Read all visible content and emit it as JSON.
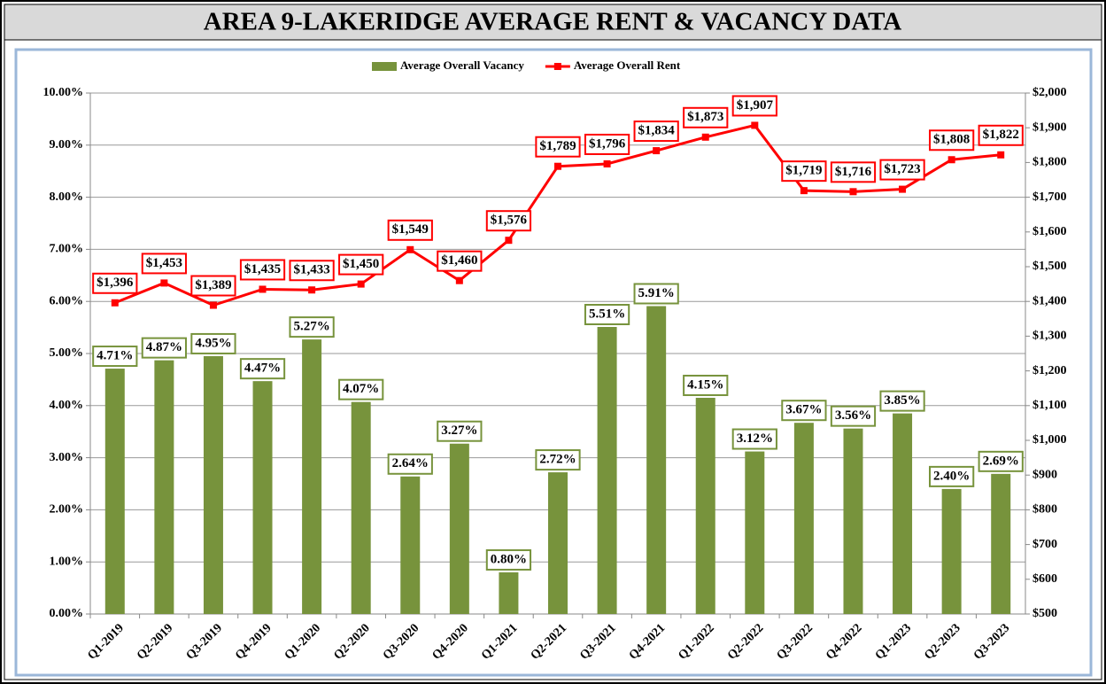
{
  "chart_data": {
    "type": "combo",
    "title": "AREA 9-LAKERIDGE AVERAGE RENT & VACANCY DATA",
    "categories": [
      "Q1-2019",
      "Q2-2019",
      "Q3-2019",
      "Q4-2019",
      "Q1-2020",
      "Q2-2020",
      "Q3-2020",
      "Q4-2020",
      "Q1-2021",
      "Q2-2021",
      "Q3-2021",
      "Q4-2021",
      "Q1-2022",
      "Q2-2022",
      "Q3-2022",
      "Q4-2022",
      "Q1-2023",
      "Q2-2023",
      "Q3-2023"
    ],
    "series": [
      {
        "name": "Average Overall Vacancy",
        "type": "bar",
        "color": "#77933c",
        "values": [
          4.71,
          4.87,
          4.95,
          4.47,
          5.27,
          4.07,
          2.64,
          3.27,
          0.8,
          2.72,
          5.51,
          5.91,
          4.15,
          3.12,
          3.67,
          3.56,
          3.85,
          2.4,
          2.69
        ],
        "value_labels": [
          "4.71%",
          "4.87%",
          "4.95%",
          "4.47%",
          "5.27%",
          "4.07%",
          "2.64%",
          "3.27%",
          "0.80%",
          "2.72%",
          "5.51%",
          "5.91%",
          "4.15%",
          "3.12%",
          "3.67%",
          "3.56%",
          "3.85%",
          "2.40%",
          "2.69%"
        ]
      },
      {
        "name": "Average Overall Rent",
        "type": "line",
        "color": "#ff0000",
        "axis": "y2",
        "values": [
          1396,
          1453,
          1389,
          1435,
          1433,
          1450,
          1549,
          1460,
          1576,
          1789,
          1796,
          1834,
          1873,
          1907,
          1719,
          1716,
          1723,
          1808,
          1822
        ],
        "value_labels": [
          "$1,396",
          "$1,453",
          "$1,389",
          "$1,435",
          "$1,433",
          "$1,450",
          "$1,549",
          "$1,460",
          "$1,576",
          "$1,789",
          "$1,796",
          "$1,834",
          "$1,873",
          "$1,907",
          "$1,719",
          "$1,716",
          "$1,723",
          "$1,808",
          "$1,822"
        ]
      }
    ],
    "ylim": [
      0,
      10
    ],
    "yticks": [
      {
        "value": 0,
        "label": "0.00%"
      },
      {
        "value": 1,
        "label": "1.00%"
      },
      {
        "value": 2,
        "label": "2.00%"
      },
      {
        "value": 3,
        "label": "3.00%"
      },
      {
        "value": 4,
        "label": "4.00%"
      },
      {
        "value": 5,
        "label": "5.00%"
      },
      {
        "value": 6,
        "label": "6.00%"
      },
      {
        "value": 7,
        "label": "7.00%"
      },
      {
        "value": 8,
        "label": "8.00%"
      },
      {
        "value": 9,
        "label": "9.00%"
      },
      {
        "value": 10,
        "label": "10.00%"
      }
    ],
    "y2lim": [
      500,
      2000
    ],
    "y2ticks": [
      {
        "value": 500,
        "label": "$500"
      },
      {
        "value": 600,
        "label": "$600"
      },
      {
        "value": 700,
        "label": "$700"
      },
      {
        "value": 800,
        "label": "$800"
      },
      {
        "value": 900,
        "label": "$900"
      },
      {
        "value": 1000,
        "label": "$1,000"
      },
      {
        "value": 1100,
        "label": "$1,100"
      },
      {
        "value": 1200,
        "label": "$1,200"
      },
      {
        "value": 1300,
        "label": "$1,300"
      },
      {
        "value": 1400,
        "label": "$1,400"
      },
      {
        "value": 1500,
        "label": "$1,500"
      },
      {
        "value": 1600,
        "label": "$1,600"
      },
      {
        "value": 1700,
        "label": "$1,700"
      },
      {
        "value": 1800,
        "label": "$1,800"
      },
      {
        "value": 1900,
        "label": "$1,900"
      },
      {
        "value": 2000,
        "label": "$2,000"
      }
    ],
    "grid": true,
    "legend": "top"
  }
}
